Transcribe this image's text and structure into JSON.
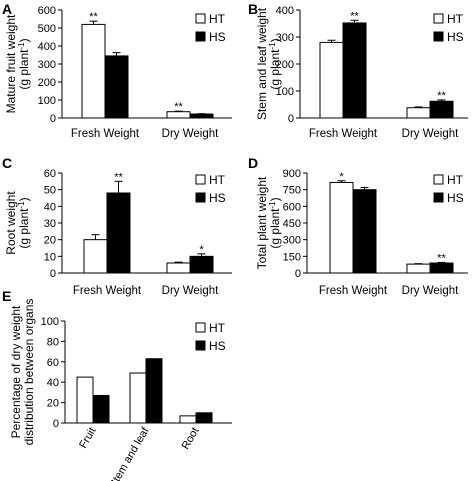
{
  "chart_data": [
    {
      "panel": "A",
      "type": "bar",
      "categories": [
        "Fresh Weight",
        "Dry Weight"
      ],
      "series": [
        {
          "name": "HT",
          "values": [
            520,
            35
          ],
          "errors": [
            18,
            3
          ],
          "sig": [
            "**",
            "**"
          ]
        },
        {
          "name": "HS",
          "values": [
            345,
            22
          ],
          "errors": [
            18,
            2
          ],
          "sig": [
            "",
            ""
          ]
        }
      ],
      "ylabel": "Mature fruit weight",
      "yunit": "(g plant",
      "yunit_sup": "-1",
      "yunit_end": ")",
      "ylim": [
        0,
        600
      ],
      "yticks": [
        0,
        100,
        200,
        300,
        400,
        500,
        600
      ],
      "legend": "top-right"
    },
    {
      "panel": "B",
      "type": "bar",
      "categories": [
        "Fresh Weight",
        "Dry Weight"
      ],
      "series": [
        {
          "name": "HT",
          "values": [
            280,
            38
          ],
          "errors": [
            8,
            3
          ],
          "sig": [
            "",
            ""
          ]
        },
        {
          "name": "HS",
          "values": [
            352,
            62
          ],
          "errors": [
            10,
            5
          ],
          "sig": [
            "**",
            "**"
          ]
        }
      ],
      "ylabel": "Stem and leaf weight",
      "yunit": "(g plant",
      "yunit_sup": "-1",
      "yunit_end": ")",
      "ylim": [
        0,
        400
      ],
      "yticks": [
        0,
        100,
        200,
        300,
        400
      ],
      "legend": "top-right"
    },
    {
      "panel": "C",
      "type": "bar",
      "categories": [
        "Fresh Weight",
        "Dry Weight"
      ],
      "series": [
        {
          "name": "HT",
          "values": [
            20,
            6
          ],
          "errors": [
            3,
            0.5
          ],
          "sig": [
            "",
            ""
          ]
        },
        {
          "name": "HS",
          "values": [
            48,
            10
          ],
          "errors": [
            7,
            1.5
          ],
          "sig": [
            "**",
            "*"
          ]
        }
      ],
      "ylabel": "Root weight",
      "yunit": "(g plant",
      "yunit_sup": "-1",
      "yunit_end": ")",
      "ylim": [
        0,
        60
      ],
      "yticks": [
        0,
        10,
        20,
        30,
        40,
        50,
        60
      ],
      "legend": "top-right"
    },
    {
      "panel": "D",
      "type": "bar",
      "categories": [
        "Fresh Weight",
        "Dry Weight"
      ],
      "series": [
        {
          "name": "HT",
          "values": [
            815,
            80
          ],
          "errors": [
            15,
            4
          ],
          "sig": [
            "*",
            ""
          ]
        },
        {
          "name": "HS",
          "values": [
            750,
            90
          ],
          "errors": [
            20,
            5
          ],
          "sig": [
            "",
            "**"
          ]
        }
      ],
      "ylabel": "Total plant weight",
      "yunit": "(g plant",
      "yunit_sup": "-1",
      "yunit_end": ")",
      "ylim": [
        0,
        900
      ],
      "yticks": [
        0,
        150,
        300,
        450,
        600,
        750,
        900
      ],
      "legend": "top-right"
    },
    {
      "panel": "E",
      "type": "bar",
      "categories": [
        "Fruit",
        "Stem and leaf",
        "Root"
      ],
      "series": [
        {
          "name": "HT",
          "values": [
            45,
            49,
            7
          ]
        },
        {
          "name": "HS",
          "values": [
            27,
            63,
            10
          ]
        }
      ],
      "ylabel": "Percentage of dry weight",
      "ylabel2": "distribution between organs",
      "ylim": [
        0,
        100
      ],
      "yticks": [
        0,
        20,
        40,
        60,
        80,
        100
      ],
      "legend": "top-right"
    }
  ]
}
